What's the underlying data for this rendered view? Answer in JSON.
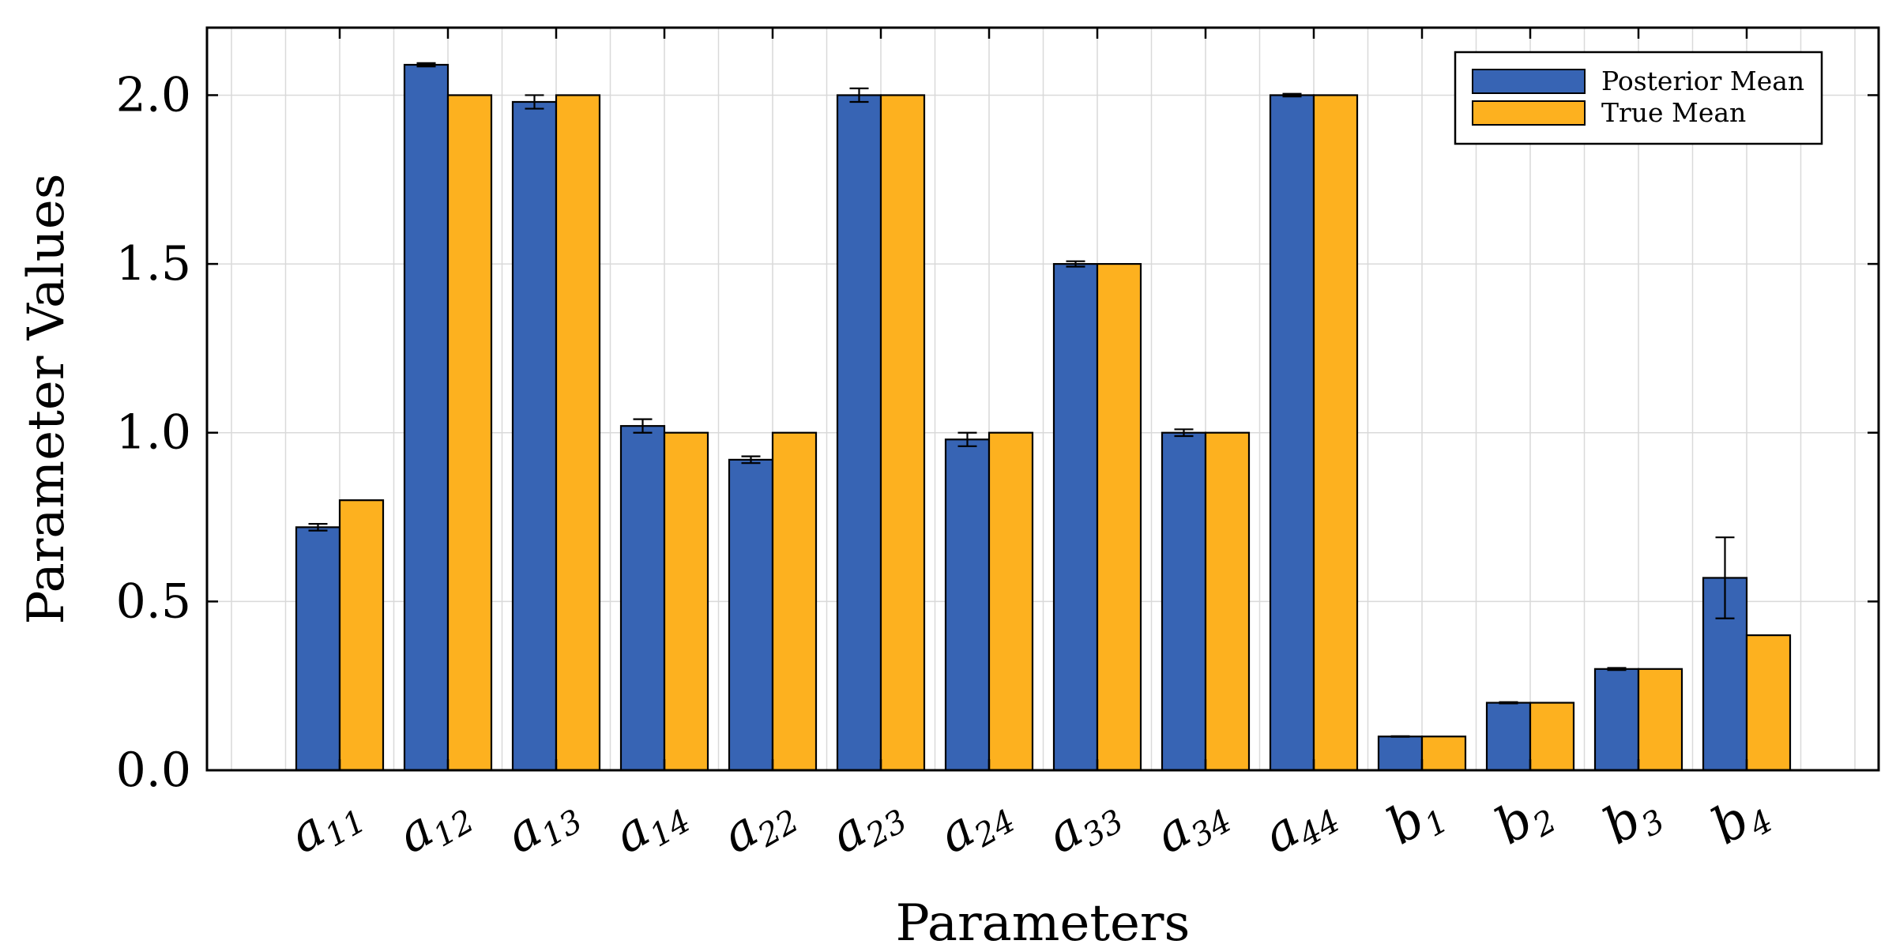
{
  "chart_data": {
    "type": "bar",
    "ylabel": "Parameter Values",
    "xlabel": "Parameters",
    "ylim": [
      0,
      2.2
    ],
    "yticks": [
      0.0,
      0.5,
      1.0,
      1.5,
      2.0
    ],
    "ytick_labels": [
      "0.0",
      "0.5",
      "1.0",
      "1.5",
      "2.0"
    ],
    "grid": true,
    "legend_position": "top-right",
    "categories": [
      {
        "base": "a",
        "sub": "11"
      },
      {
        "base": "a",
        "sub": "12"
      },
      {
        "base": "a",
        "sub": "13"
      },
      {
        "base": "a",
        "sub": "14"
      },
      {
        "base": "a",
        "sub": "22"
      },
      {
        "base": "a",
        "sub": "23"
      },
      {
        "base": "a",
        "sub": "24"
      },
      {
        "base": "a",
        "sub": "33"
      },
      {
        "base": "a",
        "sub": "34"
      },
      {
        "base": "a",
        "sub": "44"
      },
      {
        "base": "b",
        "sub": "1"
      },
      {
        "base": "b",
        "sub": "2"
      },
      {
        "base": "b",
        "sub": "3"
      },
      {
        "base": "b",
        "sub": "4"
      }
    ],
    "series": [
      {
        "name": "Posterior Mean",
        "color": "#3764b4",
        "values": [
          0.72,
          2.09,
          1.98,
          1.02,
          0.92,
          2.0,
          0.98,
          1.5,
          1.0,
          2.0,
          0.1,
          0.2,
          0.3,
          0.57
        ],
        "errors": [
          0.01,
          0.005,
          0.02,
          0.02,
          0.01,
          0.02,
          0.02,
          0.008,
          0.01,
          0.004,
          0.001,
          0.002,
          0.003,
          0.12
        ]
      },
      {
        "name": "True Mean",
        "color": "#fdb11f",
        "values": [
          0.8,
          2.0,
          2.0,
          1.0,
          1.0,
          2.0,
          1.0,
          1.5,
          1.0,
          2.0,
          0.1,
          0.2,
          0.3,
          0.4
        ]
      }
    ]
  }
}
